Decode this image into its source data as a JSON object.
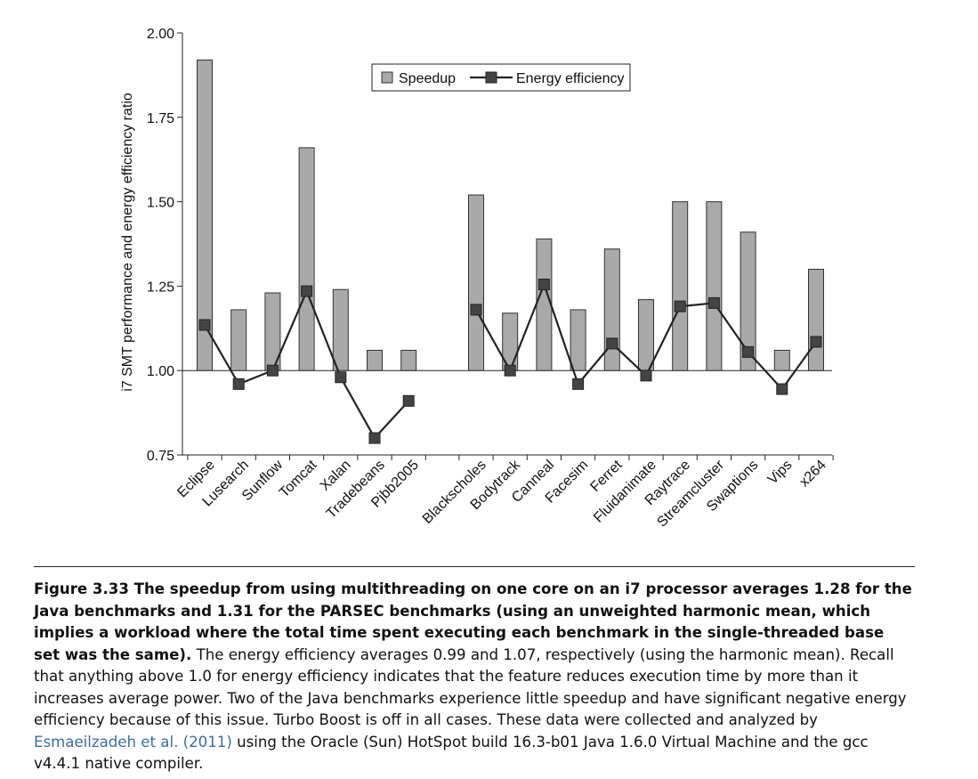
{
  "chart_data": {
    "type": "bar+line",
    "ylabel": "i7 SMT performance and energy efficiency ratio",
    "ylim": [
      0.75,
      2.0
    ],
    "yticks": [
      "0.75",
      "1.00",
      "1.25",
      "1.50",
      "1.75",
      "2.00"
    ],
    "baseline": 1.0,
    "legend": {
      "position": "top-center",
      "bar_label": "Speedup",
      "line_label": "Energy efficiency"
    },
    "groups": [
      {
        "categories": [
          "Eclipse",
          "Lusearch",
          "Sunflow",
          "Tomcat",
          "Xalan",
          "Tradebeans",
          "Pjbb2005"
        ],
        "speedup": [
          1.92,
          1.18,
          1.23,
          1.66,
          1.24,
          1.06,
          1.06
        ],
        "energy_efficiency": [
          1.135,
          0.96,
          1.0,
          1.235,
          0.98,
          0.8,
          0.91
        ]
      },
      {
        "categories": [
          "Blackscholes",
          "Bodytrack",
          "Canneal",
          "Facesim",
          "Ferret",
          "Fluidanimate",
          "Raytrace",
          "Streamcluster",
          "Swaptions",
          "Vips",
          "x264"
        ],
        "speedup": [
          1.52,
          1.17,
          1.39,
          1.18,
          1.36,
          1.21,
          1.5,
          1.5,
          1.41,
          1.06,
          1.3
        ],
        "energy_efficiency": [
          1.18,
          1.0,
          1.255,
          0.96,
          1.08,
          0.985,
          1.19,
          1.2,
          1.055,
          0.945,
          1.085
        ]
      }
    ],
    "colors": {
      "bar_fill": "#a9a9a9",
      "bar_stroke": "#333333",
      "line": "#222222",
      "marker": "#444444"
    }
  },
  "caption": {
    "bold_text": "Figure 3.33 The speedup from using multithreading on one core on an i7 processor averages 1.28 for the Java benchmarks and 1.31 for the PARSEC benchmarks (using an unweighted harmonic mean, which implies a workload where the total time spent executing each benchmark in the single-threaded base set was the same).",
    "text_1": " The energy efficiency averages 0.99 and 1.07, respectively (using the harmonic mean). Recall that anything above 1.0 for energy efficiency indicates that the feature reduces execution time by more than it increases average power. Two of the Java benchmarks experience little speedup and have significant negative energy efficiency because of this issue. Turbo Boost is off in all cases. These data were collected and analyzed by ",
    "link_text": "Esmaeilzadeh et al. (2011)",
    "text_2": " using the Oracle (Sun) HotSpot build 16.3-b01 Java 1.6.0 Virtual Machine and the gcc v4.4.1 native compiler."
  }
}
